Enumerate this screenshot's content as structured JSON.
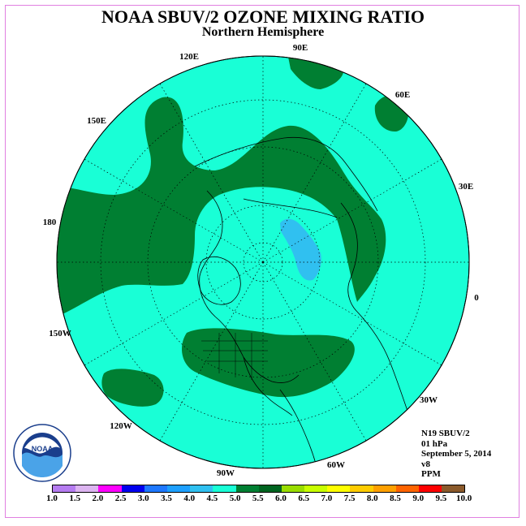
{
  "header": {
    "title": "NOAA SBUV/2 OZONE MIXING RATIO",
    "subtitle": "Northern Hemisphere"
  },
  "map": {
    "projection": "north polar stereographic",
    "background_color": "#19ffd6",
    "longitude_labels": [
      "90E",
      "60E",
      "30E",
      "0",
      "30W",
      "60W",
      "90W",
      "120W",
      "150W",
      "180",
      "150E",
      "120E"
    ]
  },
  "info": {
    "lines": [
      "N19 SBUV/2",
      "01 hPa",
      "September 5, 2014",
      "v8",
      "PPM"
    ]
  },
  "logo": {
    "text": "NOAA",
    "ring_text": "NATIONAL OCEANIC AND ATMOSPHERIC ADMINISTRATION • U.S. DEPARTMENT OF COMMERCE"
  },
  "colorbar": {
    "ticks": [
      "1.0",
      "1.5",
      "2.0",
      "2.5",
      "3.0",
      "3.5",
      "4.0",
      "4.5",
      "5.0",
      "5.5",
      "6.0",
      "6.5",
      "7.0",
      "7.5",
      "8.0",
      "8.5",
      "9.0",
      "9.5",
      "10.0"
    ],
    "colors": [
      "#b57cf0",
      "#dcb4f0",
      "#ff00ff",
      "#0000ee",
      "#1e78ff",
      "#1ea0ff",
      "#30c0f0",
      "#19ffd6",
      "#007f32",
      "#006420",
      "#99dd00",
      "#c8ff00",
      "#ffff00",
      "#ffcc00",
      "#ffa000",
      "#ff6400",
      "#ff0000",
      "#8b5a2b"
    ]
  }
}
